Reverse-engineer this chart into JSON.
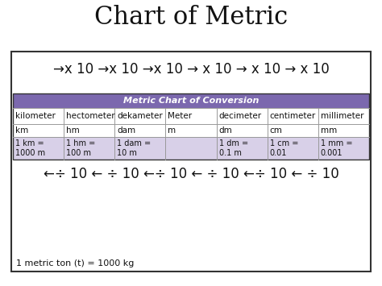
{
  "title": "Chart of Metric",
  "title_fontsize": 22,
  "arrow_text_top": "→x 10 →x 10 →x 10 → x 10 → x 10 → x 10",
  "arrow_text_bottom": "←÷ 10 ← ÷ 10 ←÷ 10 ← ÷ 10 ←÷ 10 ← ÷ 10",
  "footer_text": "1 metric ton (t) = 1000 kg",
  "table_header_text": "Metric Chart of Conversion",
  "table_header_bg": "#7B68AE",
  "table_header_fg": "#ffffff",
  "table_row1": [
    "kilometer",
    "hectometer",
    "dekameter",
    "Meter",
    "decimeter",
    "centimeter",
    "millimeter"
  ],
  "table_row2": [
    "km",
    "hm",
    "dam",
    "m",
    "dm",
    "cm",
    "mm"
  ],
  "table_row3": [
    "1 km =\n1000 m",
    "1 hm =\n100 m",
    "1 dam =\n10 m",
    "",
    "1 dm =\n0.1 m",
    "1 cm =\n0.01",
    "1 mm =\n0.001"
  ],
  "row3_bg": "#D8D0E8",
  "background_color": "#ffffff",
  "border_color": "#333333",
  "grid_color": "#999999",
  "arrow_fontsize": 12,
  "cell_fontsize": 7.5,
  "header_fontsize": 8,
  "footer_fontsize": 8
}
